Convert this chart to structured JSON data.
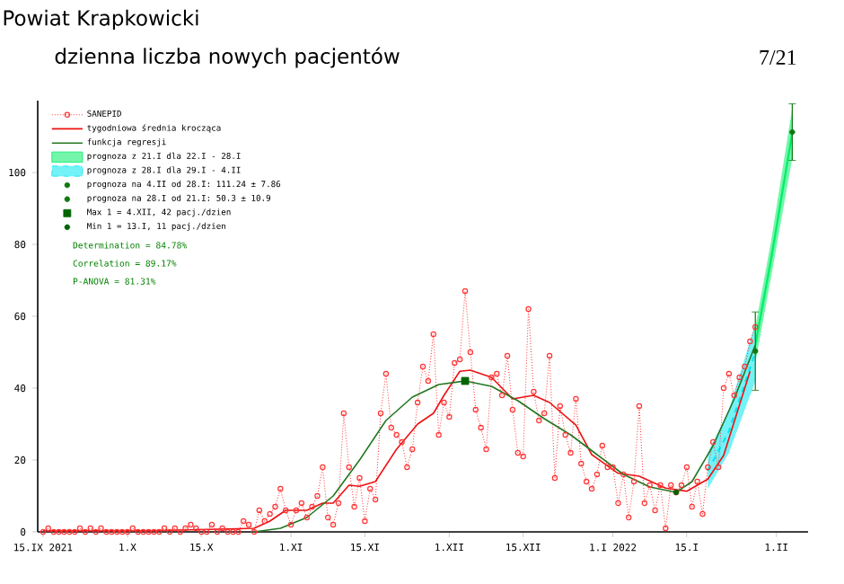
{
  "chart_data": {
    "type": "line",
    "title": "Powiat Krapkowicki",
    "subtitle": "dzienna liczba nowych pacjentów",
    "annotations": [
      "Determination = 84.78%",
      "Correlation = 89.17%",
      "P-ANOVA = 81.31%",
      "7/21"
    ],
    "xlim": [
      "2021-09-14",
      "2022-02-07"
    ],
    "xticks": [
      {
        "value": "2021-09-15",
        "label": "15.IX 2021"
      },
      {
        "value": "2021-10-01",
        "label": "1.X"
      },
      {
        "value": "2021-10-15",
        "label": "15.X"
      },
      {
        "value": "2021-11-01",
        "label": "1.XI"
      },
      {
        "value": "2021-11-15",
        "label": "15.XI"
      },
      {
        "value": "2021-12-01",
        "label": "1.XII"
      },
      {
        "value": "2021-12-15",
        "label": "15.XII"
      },
      {
        "value": "2022-01-01",
        "label": "1.I 2022"
      },
      {
        "value": "2022-01-15",
        "label": "15.I"
      },
      {
        "value": "2022-02-01",
        "label": "1.II"
      }
    ],
    "ylim": [
      0,
      120
    ],
    "yticks": [
      0,
      20,
      40,
      60,
      80,
      100
    ],
    "legend": "top left",
    "series": [
      {
        "name": "SANEPID",
        "color": "#ff3333",
        "marker": "circle",
        "line_style": "dotted",
        "x": [
          "2021-09-15",
          "2021-09-16",
          "2021-09-17",
          "2021-09-18",
          "2021-09-19",
          "2021-09-20",
          "2021-09-21",
          "2021-09-22",
          "2021-09-23",
          "2021-09-24",
          "2021-09-25",
          "2021-09-26",
          "2021-09-27",
          "2021-09-28",
          "2021-09-29",
          "2021-09-30",
          "2021-10-01",
          "2021-10-02",
          "2021-10-03",
          "2021-10-04",
          "2021-10-05",
          "2021-10-06",
          "2021-10-07",
          "2021-10-08",
          "2021-10-09",
          "2021-10-10",
          "2021-10-11",
          "2021-10-12",
          "2021-10-13",
          "2021-10-14",
          "2021-10-15",
          "2021-10-16",
          "2021-10-17",
          "2021-10-18",
          "2021-10-19",
          "2021-10-20",
          "2021-10-21",
          "2021-10-22",
          "2021-10-23",
          "2021-10-24",
          "2021-10-25",
          "2021-10-26",
          "2021-10-27",
          "2021-10-28",
          "2021-10-29",
          "2021-10-30",
          "2021-10-31",
          "2021-11-01",
          "2021-11-02",
          "2021-11-03",
          "2021-11-04",
          "2021-11-05",
          "2021-11-06",
          "2021-11-07",
          "2021-11-08",
          "2021-11-09",
          "2021-11-10",
          "2021-11-11",
          "2021-11-12",
          "2021-11-13",
          "2021-11-14",
          "2021-11-15",
          "2021-11-16",
          "2021-11-17",
          "2021-11-18",
          "2021-11-19",
          "2021-11-20",
          "2021-11-21",
          "2021-11-22",
          "2021-11-23",
          "2021-11-24",
          "2021-11-25",
          "2021-11-26",
          "2021-11-27",
          "2021-11-28",
          "2021-11-29",
          "2021-11-30",
          "2021-12-01",
          "2021-12-02",
          "2021-12-03",
          "2021-12-04",
          "2021-12-05",
          "2021-12-06",
          "2021-12-07",
          "2021-12-08",
          "2021-12-09",
          "2021-12-10",
          "2021-12-11",
          "2021-12-12",
          "2021-12-13",
          "2021-12-14",
          "2021-12-15",
          "2021-12-16",
          "2021-12-17",
          "2021-12-18",
          "2021-12-19",
          "2021-12-20",
          "2021-12-21",
          "2021-12-22",
          "2021-12-23",
          "2021-12-24",
          "2021-12-25",
          "2021-12-26",
          "2021-12-27",
          "2021-12-28",
          "2021-12-29",
          "2021-12-30",
          "2021-12-31",
          "2022-01-01",
          "2022-01-02",
          "2022-01-03",
          "2022-01-04",
          "2022-01-05",
          "2022-01-06",
          "2022-01-07",
          "2022-01-08",
          "2022-01-09",
          "2022-01-10",
          "2022-01-11",
          "2022-01-12",
          "2022-01-13",
          "2022-01-14",
          "2022-01-15",
          "2022-01-16",
          "2022-01-17",
          "2022-01-18",
          "2022-01-19",
          "2022-01-20",
          "2022-01-21",
          "2022-01-22",
          "2022-01-23",
          "2022-01-24",
          "2022-01-25",
          "2022-01-26",
          "2022-01-27",
          "2022-01-28"
        ],
        "values": [
          0,
          1,
          0,
          0,
          0,
          0,
          0,
          1,
          0,
          1,
          0,
          1,
          0,
          0,
          0,
          0,
          0,
          1,
          0,
          0,
          0,
          0,
          0,
          1,
          0,
          1,
          0,
          1,
          2,
          1,
          0,
          0,
          2,
          0,
          1,
          0,
          0,
          0,
          3,
          2,
          0,
          6,
          3,
          5,
          7,
          12,
          6,
          2,
          6,
          8,
          4,
          7,
          10,
          18,
          4,
          2,
          8,
          33,
          18,
          7,
          15,
          3,
          12,
          9,
          33,
          44,
          29,
          27,
          25,
          18,
          23,
          36,
          46,
          42,
          55,
          27,
          36,
          32,
          47,
          48,
          67,
          50,
          34,
          29,
          23,
          43,
          44,
          38,
          49,
          34,
          22,
          21,
          62,
          39,
          31,
          33,
          49,
          15,
          35,
          27,
          22,
          37,
          19,
          14,
          12,
          16,
          24,
          18,
          18,
          8,
          16,
          4,
          14,
          35,
          8,
          13,
          6,
          13,
          1,
          13,
          11,
          13,
          18,
          7,
          14,
          5,
          18,
          25,
          18,
          40,
          44,
          38,
          43,
          46,
          53,
          57
        ]
      },
      {
        "name": "tygodniowa średnia krocząca",
        "color": "#ee1111",
        "x": [
          "2021-09-15",
          "2021-10-05",
          "2021-10-20",
          "2021-10-25",
          "2021-10-28",
          "2021-10-31",
          "2021-11-04",
          "2021-11-07",
          "2021-11-09",
          "2021-11-12",
          "2021-11-14",
          "2021-11-17",
          "2021-11-21",
          "2021-11-25",
          "2021-11-28",
          "2021-11-30",
          "2021-12-03",
          "2021-12-05",
          "2021-12-09",
          "2021-12-13",
          "2021-12-17",
          "2021-12-20",
          "2021-12-25",
          "2021-12-28",
          "2022-01-02",
          "2022-01-06",
          "2022-01-11",
          "2022-01-15",
          "2022-01-19",
          "2022-01-22",
          "2022-01-27"
        ],
        "values": [
          0.3,
          0.3,
          0.8,
          1,
          3,
          6,
          6,
          8,
          8,
          13,
          12.7,
          14,
          23,
          30,
          33,
          38,
          44.7,
          45,
          43,
          37,
          38,
          36,
          29.7,
          21.5,
          16.3,
          15.5,
          12.2,
          11.3,
          14.7,
          21.3,
          44.7
        ]
      },
      {
        "name": "funkcja regresji",
        "color": "#227722",
        "x": [
          "2021-10-25",
          "2021-10-30",
          "2021-11-04",
          "2021-11-09",
          "2021-11-14",
          "2021-11-19",
          "2021-11-24",
          "2021-11-29",
          "2021-12-04",
          "2021-12-09",
          "2021-12-14",
          "2021-12-19",
          "2021-12-24",
          "2021-12-29",
          "2022-01-03",
          "2022-01-08",
          "2022-01-13",
          "2022-01-16",
          "2022-01-20",
          "2022-01-24",
          "2022-01-28"
        ],
        "values": [
          0,
          1,
          4,
          10,
          20,
          31,
          37.5,
          41,
          42,
          40.5,
          36.5,
          31.5,
          27,
          21.5,
          16,
          12.5,
          11,
          14,
          24,
          37,
          52
        ]
      },
      {
        "name": "prognoza z 21.I dla 22.I - 28.I",
        "color": "#00ee66",
        "x": [
          "2022-01-28",
          "2022-01-31",
          "2022-02-04"
        ],
        "values": [
          52,
          76,
          111
        ],
        "lower": [
          47,
          71,
          104
        ],
        "upper": [
          57,
          81,
          118
        ]
      },
      {
        "name": "prognoza z 28.I dla 29.I - 4.II",
        "color": "#00e8f0",
        "line_style": "dashed",
        "x": [
          "2022-01-19",
          "2022-01-23",
          "2022-01-28"
        ],
        "values": [
          17,
          28,
          50
        ],
        "lower": [
          12,
          22,
          42
        ],
        "upper": [
          22,
          34,
          58
        ]
      },
      {
        "name": "prognoza na 4.II od 28.I: 111.24 ± 7.86",
        "type": "scatter",
        "color": "#117711",
        "marker": "circle",
        "x": [
          "2022-02-04"
        ],
        "values": [
          111.24
        ],
        "errors": [
          7.86
        ]
      },
      {
        "name": "prognoza na 28.I od 21.I: 50.3 ± 10.9",
        "type": "scatter",
        "color": "#117711",
        "marker": "circle",
        "x": [
          "2022-01-28"
        ],
        "values": [
          50.3
        ],
        "errors": [
          10.9
        ]
      },
      {
        "name": "Max 1 = 4.XII, 42 pacj./dzien",
        "type": "scatter",
        "color": "#006400",
        "marker": "square",
        "x": [
          "2021-12-04"
        ],
        "values": [
          42
        ]
      },
      {
        "name": "Min 1 = 13.I, 11 pacj./dzien",
        "type": "scatter",
        "color": "#006400",
        "marker": "circle",
        "x": [
          "2022-01-13"
        ],
        "values": [
          11
        ]
      }
    ]
  }
}
